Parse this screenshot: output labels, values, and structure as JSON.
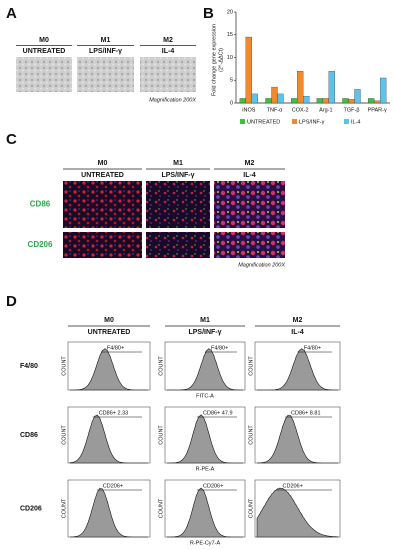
{
  "panel_a": {
    "letter": "A",
    "columns": [
      {
        "label": "M0",
        "condition": "UNTREATED"
      },
      {
        "label": "M1",
        "condition": "LPS/INF-γ"
      },
      {
        "label": "M2",
        "condition": "IL-4"
      }
    ],
    "note": "Magnification 200X"
  },
  "chart_data": {
    "type": "bar",
    "letter": "B",
    "y_label": [
      "Fold change gene expression",
      "(2^-ΔΔCt)"
    ],
    "categories": [
      "iNOS",
      "TNF-α",
      "COX-2",
      "Arg-1",
      "TGF-β",
      "PPAR-γ"
    ],
    "series": [
      {
        "name": "UNTREATED",
        "color": "#3cc23c",
        "values": [
          1,
          1,
          1,
          1,
          1,
          1
        ]
      },
      {
        "name": "LPS/INF-γ",
        "color": "#f08a2c",
        "values": [
          14.5,
          3.5,
          7,
          1,
          0.8,
          0.5
        ]
      },
      {
        "name": "IL-4",
        "color": "#5ec3ea",
        "values": [
          2,
          2,
          1.5,
          7,
          3,
          5.5
        ]
      }
    ],
    "ylim": [
      0,
      20
    ],
    "yticks": [
      0,
      5,
      10,
      15,
      20
    ]
  },
  "panel_c": {
    "letter": "C",
    "columns": [
      {
        "label": "M0",
        "condition": "UNTREATED"
      },
      {
        "label": "M1",
        "condition": "LPS/INF-γ"
      },
      {
        "label": "M2",
        "condition": "IL-4"
      }
    ],
    "rows": [
      "CD86",
      "CD206"
    ],
    "note": "Magnification 200X"
  },
  "panel_d": {
    "letter": "D",
    "columns": [
      {
        "label": "M0",
        "condition": "UNTREATED"
      },
      {
        "label": "M1",
        "condition": "LPS/INF-γ"
      },
      {
        "label": "M2",
        "condition": "IL-4"
      }
    ],
    "rows": [
      {
        "label": "F4/80",
        "x_label": "FITC-A"
      },
      {
        "label": "CD86",
        "x_label": "R-PE-A"
      },
      {
        "label": "CD206",
        "x_label": "R-PE-Cy7-A"
      }
    ],
    "y_label": "COUNT",
    "gates": [
      [
        "F4/80+",
        "F4/80+",
        "F4/80+"
      ],
      [
        "CD86+ 2.33",
        "CD86+ 47.9",
        "CD86+ 8.81"
      ],
      [
        "CD206+",
        "CD206+",
        "CD206+"
      ]
    ]
  }
}
